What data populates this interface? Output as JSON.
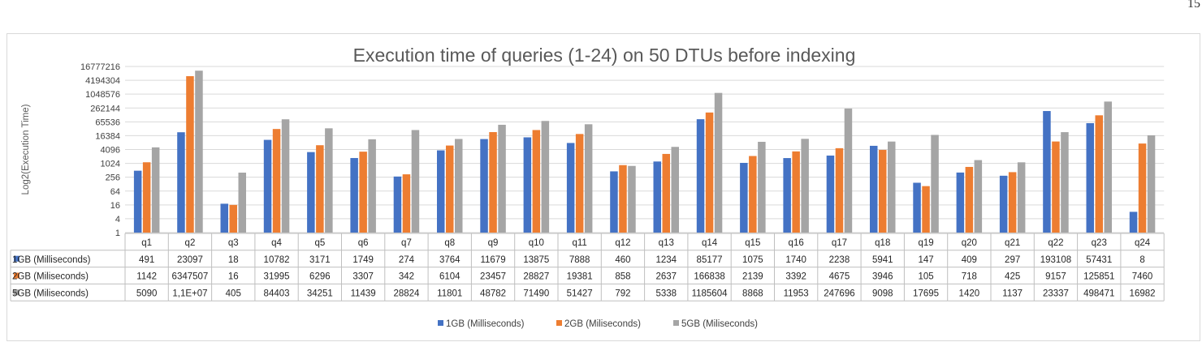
{
  "page_number": "15",
  "chart_data": {
    "type": "bar",
    "title": "Execution time of queries (1-24) on 50 DTUs before indexing",
    "ylabel": "Log2(Execution Time)",
    "xlabel": "",
    "yscale": "log2",
    "ylim": [
      1,
      16777216
    ],
    "yticks": [
      "1",
      "4",
      "16",
      "64",
      "256",
      "1024",
      "4096",
      "16384",
      "65536",
      "262144",
      "1048576",
      "4194304",
      "16777216"
    ],
    "grid": true,
    "legend_position": "bottom",
    "categories": [
      "q1",
      "q2",
      "q3",
      "q4",
      "q5",
      "q6",
      "q7",
      "q8",
      "q9",
      "q10",
      "q11",
      "q12",
      "q13",
      "q14",
      "q15",
      "q16",
      "q17",
      "q18",
      "q19",
      "q20",
      "q21",
      "q22",
      "q23",
      "q24"
    ],
    "series": [
      {
        "name": "1GB (Milliseconds)",
        "color": "#4472c4",
        "values": [
          491,
          23097,
          18,
          10782,
          3171,
          1749,
          274,
          3764,
          11679,
          13875,
          7888,
          460,
          1234,
          85177,
          1075,
          1740,
          2238,
          5941,
          147,
          409,
          297,
          193108,
          57431,
          8
        ],
        "labels": [
          "491",
          "23097",
          "18",
          "10782",
          "3171",
          "1749",
          "274",
          "3764",
          "11679",
          "13875",
          "7888",
          "460",
          "1234",
          "85177",
          "1075",
          "1740",
          "2238",
          "5941",
          "147",
          "409",
          "297",
          "193108",
          "57431",
          "8"
        ]
      },
      {
        "name": "2GB (Miliseconds)",
        "color": "#ed7d31",
        "values": [
          1142,
          6347507,
          16,
          31995,
          6296,
          3307,
          342,
          6104,
          23457,
          28827,
          19381,
          858,
          2637,
          166838,
          2139,
          3392,
          4675,
          3946,
          105,
          718,
          425,
          9157,
          125851,
          7460
        ],
        "labels": [
          "1142",
          "6347507",
          "16",
          "31995",
          "6296",
          "3307",
          "342",
          "6104",
          "23457",
          "28827",
          "19381",
          "858",
          "2637",
          "166838",
          "2139",
          "3392",
          "4675",
          "3946",
          "105",
          "718",
          "425",
          "9157",
          "125851",
          "7460"
        ]
      },
      {
        "name": "5GB (Miliseconds)",
        "color": "#a5a5a5",
        "values": [
          5090,
          11000000,
          405,
          84403,
          34251,
          11439,
          28824,
          11801,
          48782,
          71490,
          51427,
          792,
          5338,
          1185604,
          8868,
          11953,
          247696,
          9098,
          17695,
          1420,
          1137,
          23337,
          498471,
          16982
        ],
        "labels": [
          "5090",
          "1,1E+07",
          "405",
          "84403",
          "34251",
          "11439",
          "28824",
          "11801",
          "48782",
          "71490",
          "51427",
          "792",
          "5338",
          "1185604",
          "8868",
          "11953",
          "247696",
          "9098",
          "17695",
          "1420",
          "1137",
          "23337",
          "498471",
          "16982"
        ]
      }
    ]
  }
}
